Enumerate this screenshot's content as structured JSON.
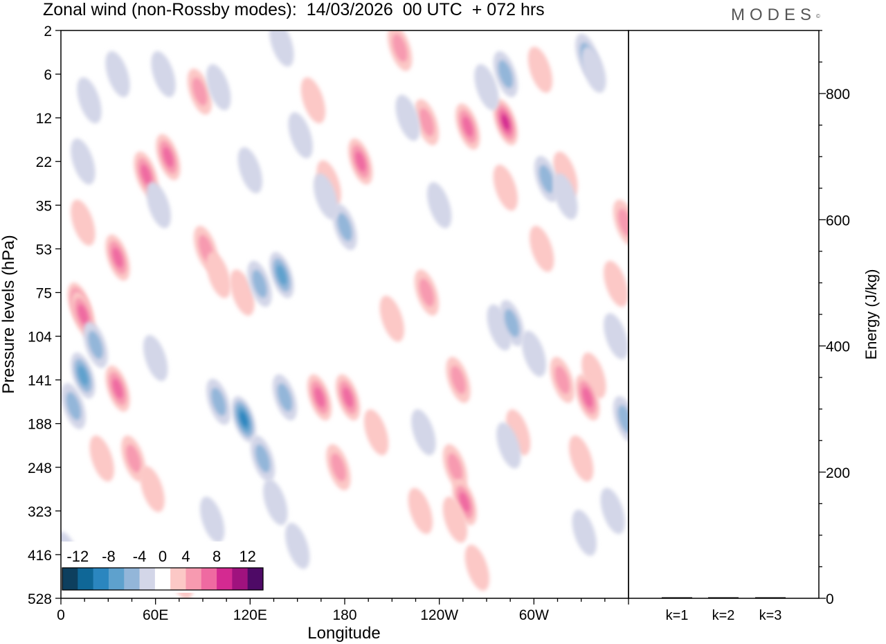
{
  "title": "Zonal wind (non-Rossby modes):  14/03/2026  00 UTC  + 072 hrs",
  "brand": "MODES",
  "brand_mark": "©",
  "chart_data": [
    {
      "type": "heatmap",
      "title": "Zonal wind (non-Rossby modes):  14/03/2026  00 UTC  + 072 hrs",
      "xlabel": "Longitude",
      "ylabel": "Pressure levels (hPa)",
      "x_ticks": [
        "0",
        "60E",
        "120E",
        "180",
        "120W",
        "60W"
      ],
      "x_tick_deg": [
        0,
        60,
        120,
        180,
        240,
        300
      ],
      "xlim": [
        0,
        360
      ],
      "y_ticks": [
        "2",
        "6",
        "12",
        "22",
        "35",
        "53",
        "75",
        "104",
        "141",
        "188",
        "248",
        "323",
        "416",
        "528"
      ],
      "y_reversed": true,
      "colorbar": {
        "labels": [
          "-12",
          "-8",
          "-4",
          "0",
          "4",
          "8",
          "12"
        ],
        "levels": [
          -14,
          -12,
          -10,
          -8,
          -6,
          -4,
          -2,
          2,
          4,
          6,
          8,
          10,
          12,
          14
        ],
        "colors": [
          "#0d3f5e",
          "#0f6797",
          "#2b86bf",
          "#5ea1cd",
          "#93b6d9",
          "#d3d6e8",
          "#ffffff",
          "#fcc8c6",
          "#f79ab0",
          "#ef6aa1",
          "#d42a91",
          "#a0127e",
          "#4e0a66"
        ]
      },
      "features": [
        {
          "x": 12,
          "y": 6.3,
          "v": 10
        },
        {
          "x": 14,
          "y": 6.5,
          "v": 8
        },
        {
          "x": 36,
          "y": 5.2,
          "v": 8
        },
        {
          "x": 54,
          "y": 3.3,
          "v": 8
        },
        {
          "x": 68,
          "y": 2.9,
          "v": 7
        },
        {
          "x": 88,
          "y": 1.4,
          "v": 5
        },
        {
          "x": 92,
          "y": 5.0,
          "v": 5
        },
        {
          "x": 14,
          "y": 4.4,
          "v": 4
        },
        {
          "x": 46,
          "y": 9.8,
          "v": 5
        },
        {
          "x": 115,
          "y": 6.0,
          "v": 4
        },
        {
          "x": 160,
          "y": 1.6,
          "v": 4
        },
        {
          "x": 170,
          "y": 3.5,
          "v": 4
        },
        {
          "x": 190,
          "y": 3.0,
          "v": 7
        },
        {
          "x": 215,
          "y": 0.4,
          "v": 6
        },
        {
          "x": 232,
          "y": 2.1,
          "v": 5
        },
        {
          "x": 258,
          "y": 2.2,
          "v": 7
        },
        {
          "x": 282,
          "y": 2.1,
          "v": 9
        },
        {
          "x": 282,
          "y": 3.6,
          "v": 4
        },
        {
          "x": 304,
          "y": 0.9,
          "v": 4
        },
        {
          "x": 320,
          "y": 3.3,
          "v": 4
        },
        {
          "x": 305,
          "y": 5.0,
          "v": 4
        },
        {
          "x": 338,
          "y": 7.9,
          "v": 4
        },
        {
          "x": 232,
          "y": 6.0,
          "v": 6
        },
        {
          "x": 210,
          "y": 6.6,
          "v": 4
        },
        {
          "x": 164,
          "y": 8.4,
          "v": 8
        },
        {
          "x": 182,
          "y": 8.4,
          "v": 7
        },
        {
          "x": 176,
          "y": 10.0,
          "v": 6
        },
        {
          "x": 200,
          "y": 9.2,
          "v": 4
        },
        {
          "x": 252,
          "y": 8.0,
          "v": 6
        },
        {
          "x": 250,
          "y": 10.0,
          "v": 5
        },
        {
          "x": 256,
          "y": 10.8,
          "v": 7
        },
        {
          "x": 250,
          "y": 11.2,
          "v": 4
        },
        {
          "x": 228,
          "y": 11.0,
          "v": 4
        },
        {
          "x": 264,
          "y": 12.3,
          "v": 4
        },
        {
          "x": 290,
          "y": 9.2,
          "v": 4
        },
        {
          "x": 334,
          "y": 8.4,
          "v": 8
        },
        {
          "x": 318,
          "y": 8.0,
          "v": 6
        },
        {
          "x": 330,
          "y": 9.8,
          "v": 4
        },
        {
          "x": 26,
          "y": 9.8,
          "v": 4
        },
        {
          "x": 36,
          "y": 8.2,
          "v": 7
        },
        {
          "x": 58,
          "y": 10.5,
          "v": 4
        },
        {
          "x": 76,
          "y": 12.5,
          "v": 4
        },
        {
          "x": 352,
          "y": 5.8,
          "v": 4
        },
        {
          "x": 358,
          "y": 4.4,
          "v": 5
        },
        {
          "x": 100,
          "y": 5.6,
          "v": 4
        },
        {
          "x": 14,
          "y": 7.9,
          "v": -7
        },
        {
          "x": 8,
          "y": 8.6,
          "v": -6
        },
        {
          "x": 22,
          "y": 7.2,
          "v": -5
        },
        {
          "x": 116,
          "y": 8.9,
          "v": -9
        },
        {
          "x": 128,
          "y": 9.8,
          "v": -6
        },
        {
          "x": 142,
          "y": 8.4,
          "v": -6
        },
        {
          "x": 100,
          "y": 8.5,
          "v": -5
        },
        {
          "x": 136,
          "y": 10.8,
          "v": -4
        },
        {
          "x": 150,
          "y": 11.8,
          "v": -4
        },
        {
          "x": 140,
          "y": 5.6,
          "v": -8
        },
        {
          "x": 126,
          "y": 5.8,
          "v": -5
        },
        {
          "x": 180,
          "y": 4.5,
          "v": -6
        },
        {
          "x": 168,
          "y": 3.8,
          "v": -4
        },
        {
          "x": 152,
          "y": 2.4,
          "v": -4
        },
        {
          "x": 120,
          "y": 3.2,
          "v": -4
        },
        {
          "x": 140,
          "y": 0.3,
          "v": -4
        },
        {
          "x": 282,
          "y": 1.0,
          "v": -5
        },
        {
          "x": 270,
          "y": 1.3,
          "v": -4
        },
        {
          "x": 334,
          "y": 0.6,
          "v": -5
        },
        {
          "x": 338,
          "y": 0.9,
          "v": -4
        },
        {
          "x": 308,
          "y": 3.4,
          "v": -5
        },
        {
          "x": 320,
          "y": 3.8,
          "v": -4
        },
        {
          "x": 14,
          "y": 3.0,
          "v": -4
        },
        {
          "x": 62,
          "y": 4.0,
          "v": -4
        },
        {
          "x": 36,
          "y": 1.0,
          "v": -4
        },
        {
          "x": 65,
          "y": 1.0,
          "v": -4
        },
        {
          "x": 18,
          "y": 1.6,
          "v": -4
        },
        {
          "x": 278,
          "y": 6.8,
          "v": -4
        },
        {
          "x": 286,
          "y": 6.7,
          "v": -5
        },
        {
          "x": 300,
          "y": 7.4,
          "v": -4
        },
        {
          "x": 358,
          "y": 8.9,
          "v": -5
        },
        {
          "x": 352,
          "y": 7.0,
          "v": -4
        },
        {
          "x": 350,
          "y": 11.0,
          "v": -4
        },
        {
          "x": 332,
          "y": 11.5,
          "v": -4
        },
        {
          "x": 4,
          "y": 12.0,
          "v": -4
        },
        {
          "x": 96,
          "y": 11.2,
          "v": -4
        },
        {
          "x": 230,
          "y": 9.2,
          "v": -4
        },
        {
          "x": 284,
          "y": 9.5,
          "v": -4
        },
        {
          "x": 220,
          "y": 2.0,
          "v": -4
        },
        {
          "x": 240,
          "y": 4.0,
          "v": -4
        },
        {
          "x": 100,
          "y": 1.3,
          "v": -4
        },
        {
          "x": 60,
          "y": 7.5,
          "v": -4
        }
      ]
    },
    {
      "type": "bar",
      "ylabel": "Energy (J/kg)",
      "categories": [
        "k=1",
        "k=2",
        "k=3"
      ],
      "values": [
        0.6,
        0.5,
        0.5
      ],
      "ylim": [
        0,
        900
      ],
      "y_ticks": [
        0,
        200,
        400,
        600,
        800
      ]
    }
  ]
}
